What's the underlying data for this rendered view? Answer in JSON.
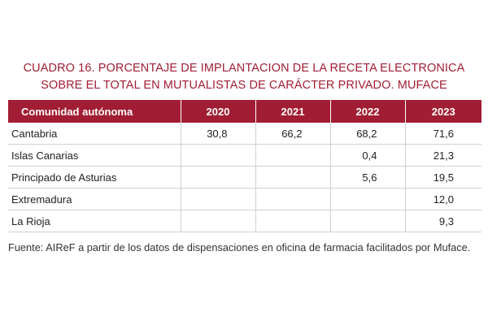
{
  "title": {
    "line1": "CUADRO 16.  PORCENTAJE DE IMPLANTACION DE LA RECETA ELECTRONICA",
    "line2": "SOBRE EL TOTAL EN MUTUALISTAS DE CARÁCTER PRIVADO. MUFACE"
  },
  "table": {
    "headers": [
      "Comunidad autónoma",
      "2020",
      "2021",
      "2022",
      "2023"
    ],
    "rows": [
      {
        "region": "Cantabria",
        "v2020": "30,8",
        "v2021": "66,2",
        "v2022": "68,2",
        "v2023": "71,6"
      },
      {
        "region": "Islas Canarias",
        "v2020": "",
        "v2021": "",
        "v2022": "0,4",
        "v2023": "21,3"
      },
      {
        "region": "Principado de Asturias",
        "v2020": "",
        "v2021": "",
        "v2022": "5,6",
        "v2023": "19,5"
      },
      {
        "region": "Extremadura",
        "v2020": "",
        "v2021": "",
        "v2022": "",
        "v2023": "12,0"
      },
      {
        "region": "La Rioja",
        "v2020": "",
        "v2021": "",
        "v2022": "",
        "v2023": "9,3"
      }
    ]
  },
  "source": "Fuente: AIReF a partir de los datos de dispensaciones en oficina de farmacia facilitados por Muface.",
  "colors": {
    "accent": "#a11d33",
    "grid": "#d0d0d0"
  }
}
